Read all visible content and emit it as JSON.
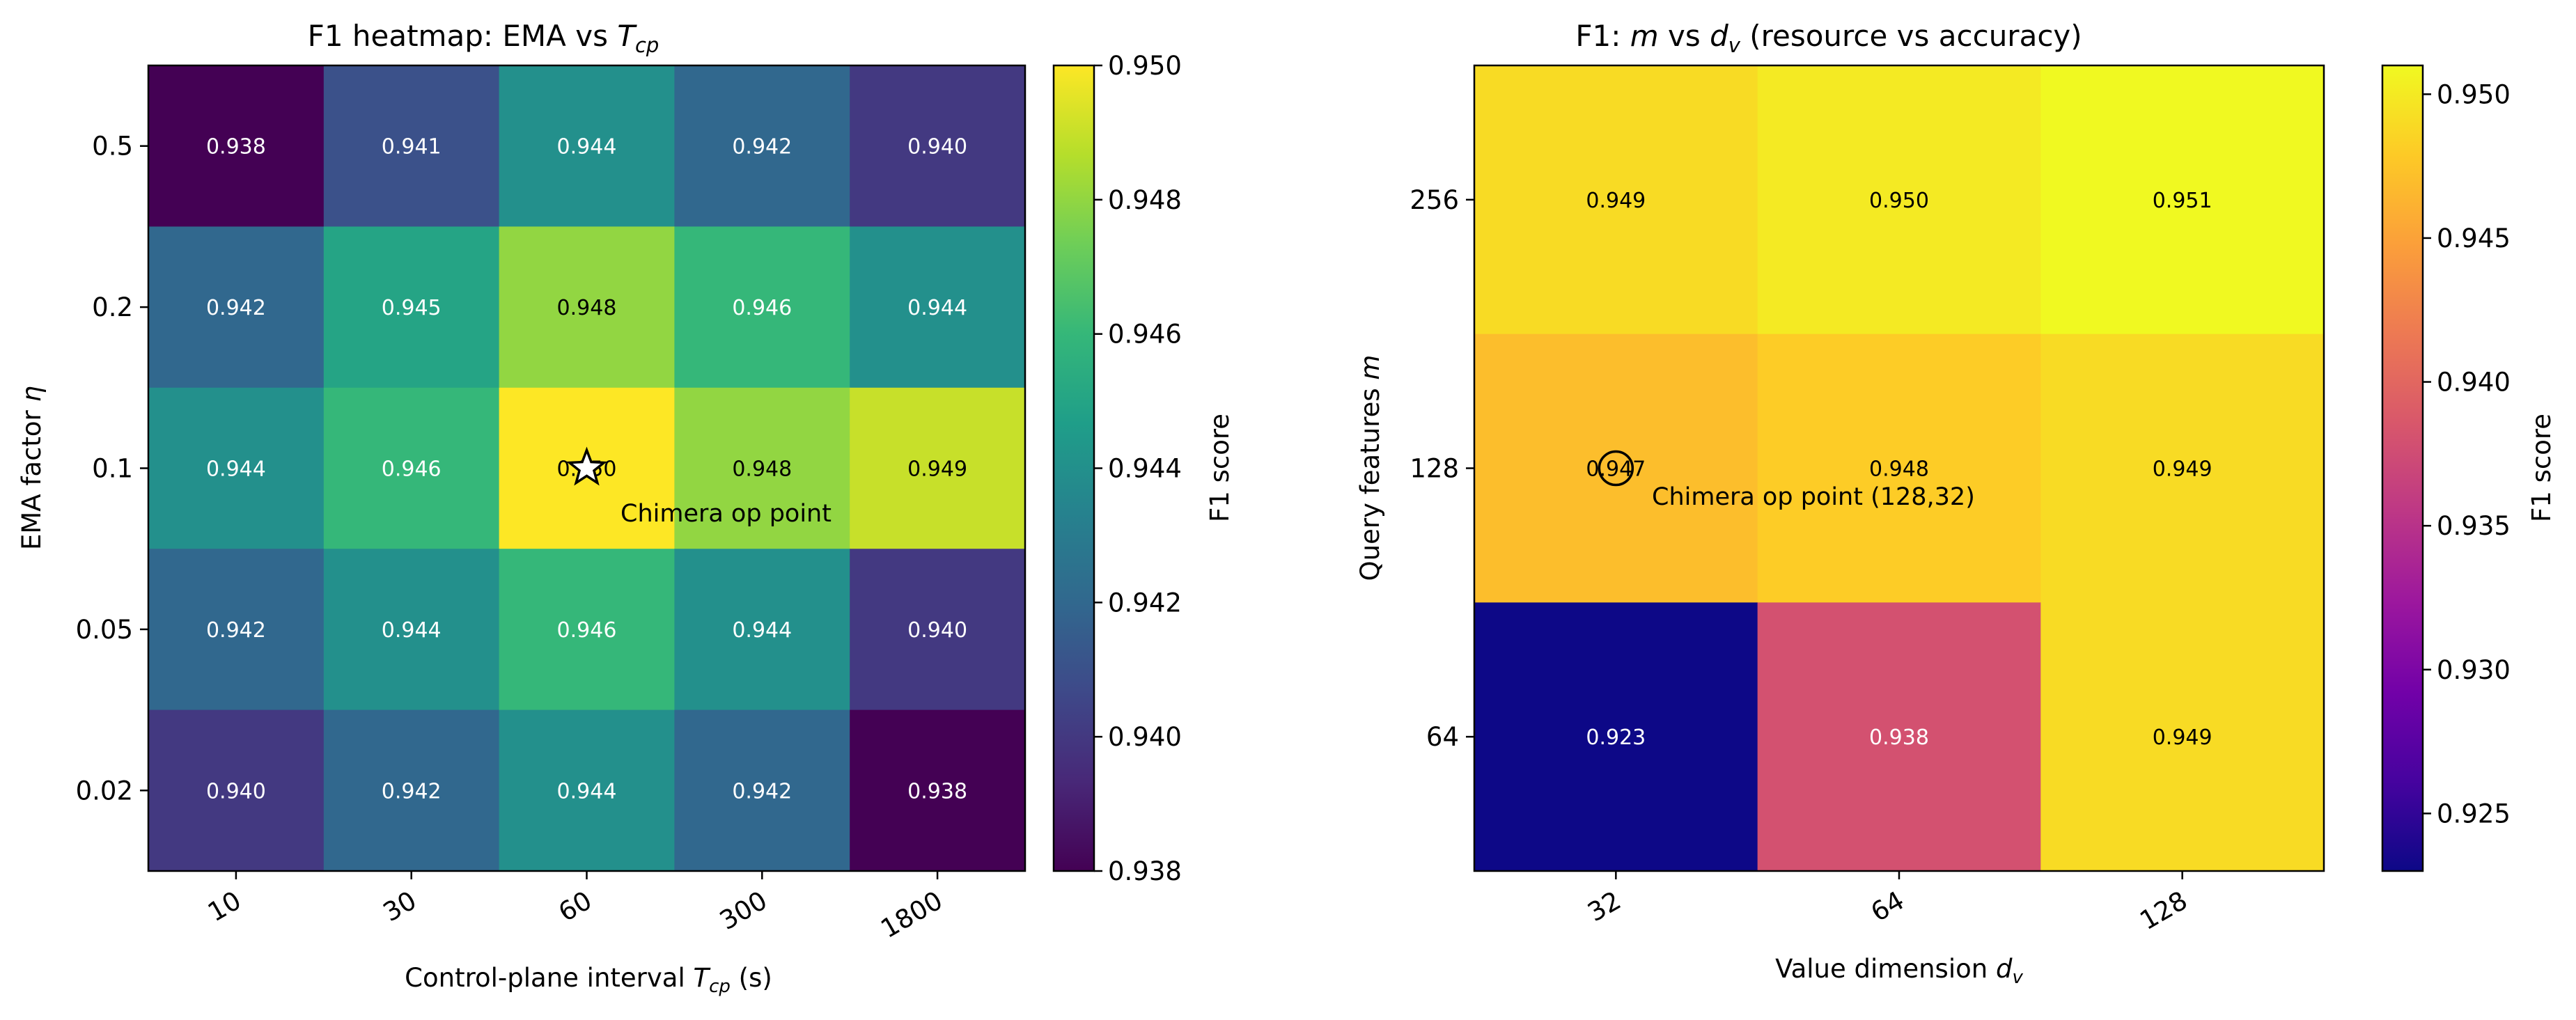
{
  "chart_data": [
    {
      "type": "heatmap",
      "title_prefix": "F1 heatmap: EMA vs ",
      "title_var": "T",
      "title_sub": "cp",
      "xlabel_prefix": "Control-plane interval ",
      "xlabel_var": "T",
      "xlabel_sub": "cp",
      "xlabel_suffix": " (s)",
      "ylabel_prefix": "EMA factor ",
      "ylabel_var": "η",
      "x_categories": [
        "10",
        "30",
        "60",
        "300",
        "1800"
      ],
      "y_categories": [
        "0.5",
        "0.2",
        "0.1",
        "0.05",
        "0.02"
      ],
      "values": [
        [
          0.938,
          0.941,
          0.944,
          0.942,
          0.94
        ],
        [
          0.942,
          0.945,
          0.948,
          0.946,
          0.944
        ],
        [
          0.944,
          0.946,
          0.95,
          0.948,
          0.949
        ],
        [
          0.942,
          0.944,
          0.946,
          0.944,
          0.94
        ],
        [
          0.94,
          0.942,
          0.944,
          0.942,
          0.938
        ]
      ],
      "cell_labels": [
        [
          "0.938",
          "0.941",
          "0.944",
          "0.942",
          "0.940"
        ],
        [
          "0.942",
          "0.945",
          "0.948",
          "0.946",
          "0.944"
        ],
        [
          "0.944",
          "0.946",
          "0.950",
          "0.948",
          "0.949"
        ],
        [
          "0.942",
          "0.944",
          "0.946",
          "0.944",
          "0.940"
        ],
        [
          "0.940",
          "0.942",
          "0.944",
          "0.942",
          "0.938"
        ]
      ],
      "colormap": "viridis",
      "vmin": 0.938,
      "vmax": 0.95,
      "colorbar_label": "F1 score",
      "colorbar_ticks": [
        0.938,
        0.94,
        0.942,
        0.944,
        0.946,
        0.948,
        0.95
      ],
      "colorbar_tick_labels": [
        "0.938",
        "0.940",
        "0.942",
        "0.944",
        "0.946",
        "0.948",
        "0.950"
      ],
      "marker": {
        "shape": "star",
        "row": 2,
        "col": 2
      },
      "annotation": "Chimera op point"
    },
    {
      "type": "heatmap",
      "title_prefix": "F1: ",
      "title_var1": "m",
      "title_mid": " vs ",
      "title_var2": "d",
      "title_sub": "v",
      "title_suffix": " (resource vs accuracy)",
      "xlabel_prefix": "Value dimension ",
      "xlabel_var": "d",
      "xlabel_sub": "v",
      "ylabel_prefix": "Query features ",
      "ylabel_var": "m",
      "x_categories": [
        "32",
        "64",
        "128"
      ],
      "y_categories": [
        "256",
        "128",
        "64"
      ],
      "values": [
        [
          0.949,
          0.95,
          0.951
        ],
        [
          0.947,
          0.948,
          0.949
        ],
        [
          0.923,
          0.938,
          0.949
        ]
      ],
      "cell_labels": [
        [
          "0.949",
          "0.950",
          "0.951"
        ],
        [
          "0.947",
          "0.948",
          "0.949"
        ],
        [
          "0.923",
          "0.938",
          "0.949"
        ]
      ],
      "colormap": "plasma",
      "vmin": 0.923,
      "vmax": 0.951,
      "colorbar_label": "F1 score",
      "colorbar_ticks": [
        0.925,
        0.93,
        0.935,
        0.94,
        0.945,
        0.95
      ],
      "colorbar_tick_labels": [
        "0.925",
        "0.930",
        "0.935",
        "0.940",
        "0.945",
        "0.950"
      ],
      "marker": {
        "shape": "circle",
        "row": 1,
        "col": 0
      },
      "annotation": "Chimera op point (128,32)"
    }
  ]
}
